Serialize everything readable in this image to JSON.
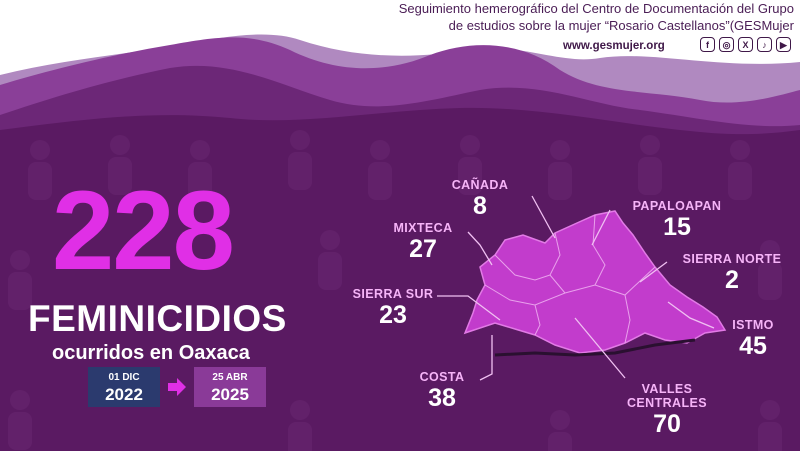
{
  "header": {
    "line1": "Seguimiento hemerográfico del Centro de Documentación del Grupo",
    "line2": "de estudios sobre la mujer “Rosario Castellanos”(GESMujer",
    "website": "www.gesmujer.org",
    "social_icons": [
      "facebook-icon",
      "instagram-icon",
      "x-icon",
      "tiktok-icon",
      "youtube-icon"
    ]
  },
  "headline": {
    "count": "228",
    "title": "FEMINICIDIOS",
    "subtitle": "ocurridos en Oaxaca"
  },
  "period": {
    "start_day": "01 DIC",
    "start_year": "2022",
    "end_day": "25 ABR",
    "end_year": "2025"
  },
  "regions": [
    {
      "name": "CAÑADA",
      "value": "8"
    },
    {
      "name": "PAPALOAPAN",
      "value": "15"
    },
    {
      "name": "MIXTECA",
      "value": "27"
    },
    {
      "name": "SIERRA NORTE",
      "value": "2"
    },
    {
      "name": "SIERRA SUR",
      "value": "23"
    },
    {
      "name": "ISTMO",
      "value": "45"
    },
    {
      "name": "COSTA",
      "value": "38"
    },
    {
      "name": "VALLES CENTRALES",
      "value": "70"
    }
  ],
  "colors": {
    "accent_magenta": "#e02fe6",
    "background_purple": "#5a1a62",
    "date_start_bg": "#2b3a6e",
    "date_end_bg": "#8a3a98",
    "map_fill": "#c23ccc"
  }
}
